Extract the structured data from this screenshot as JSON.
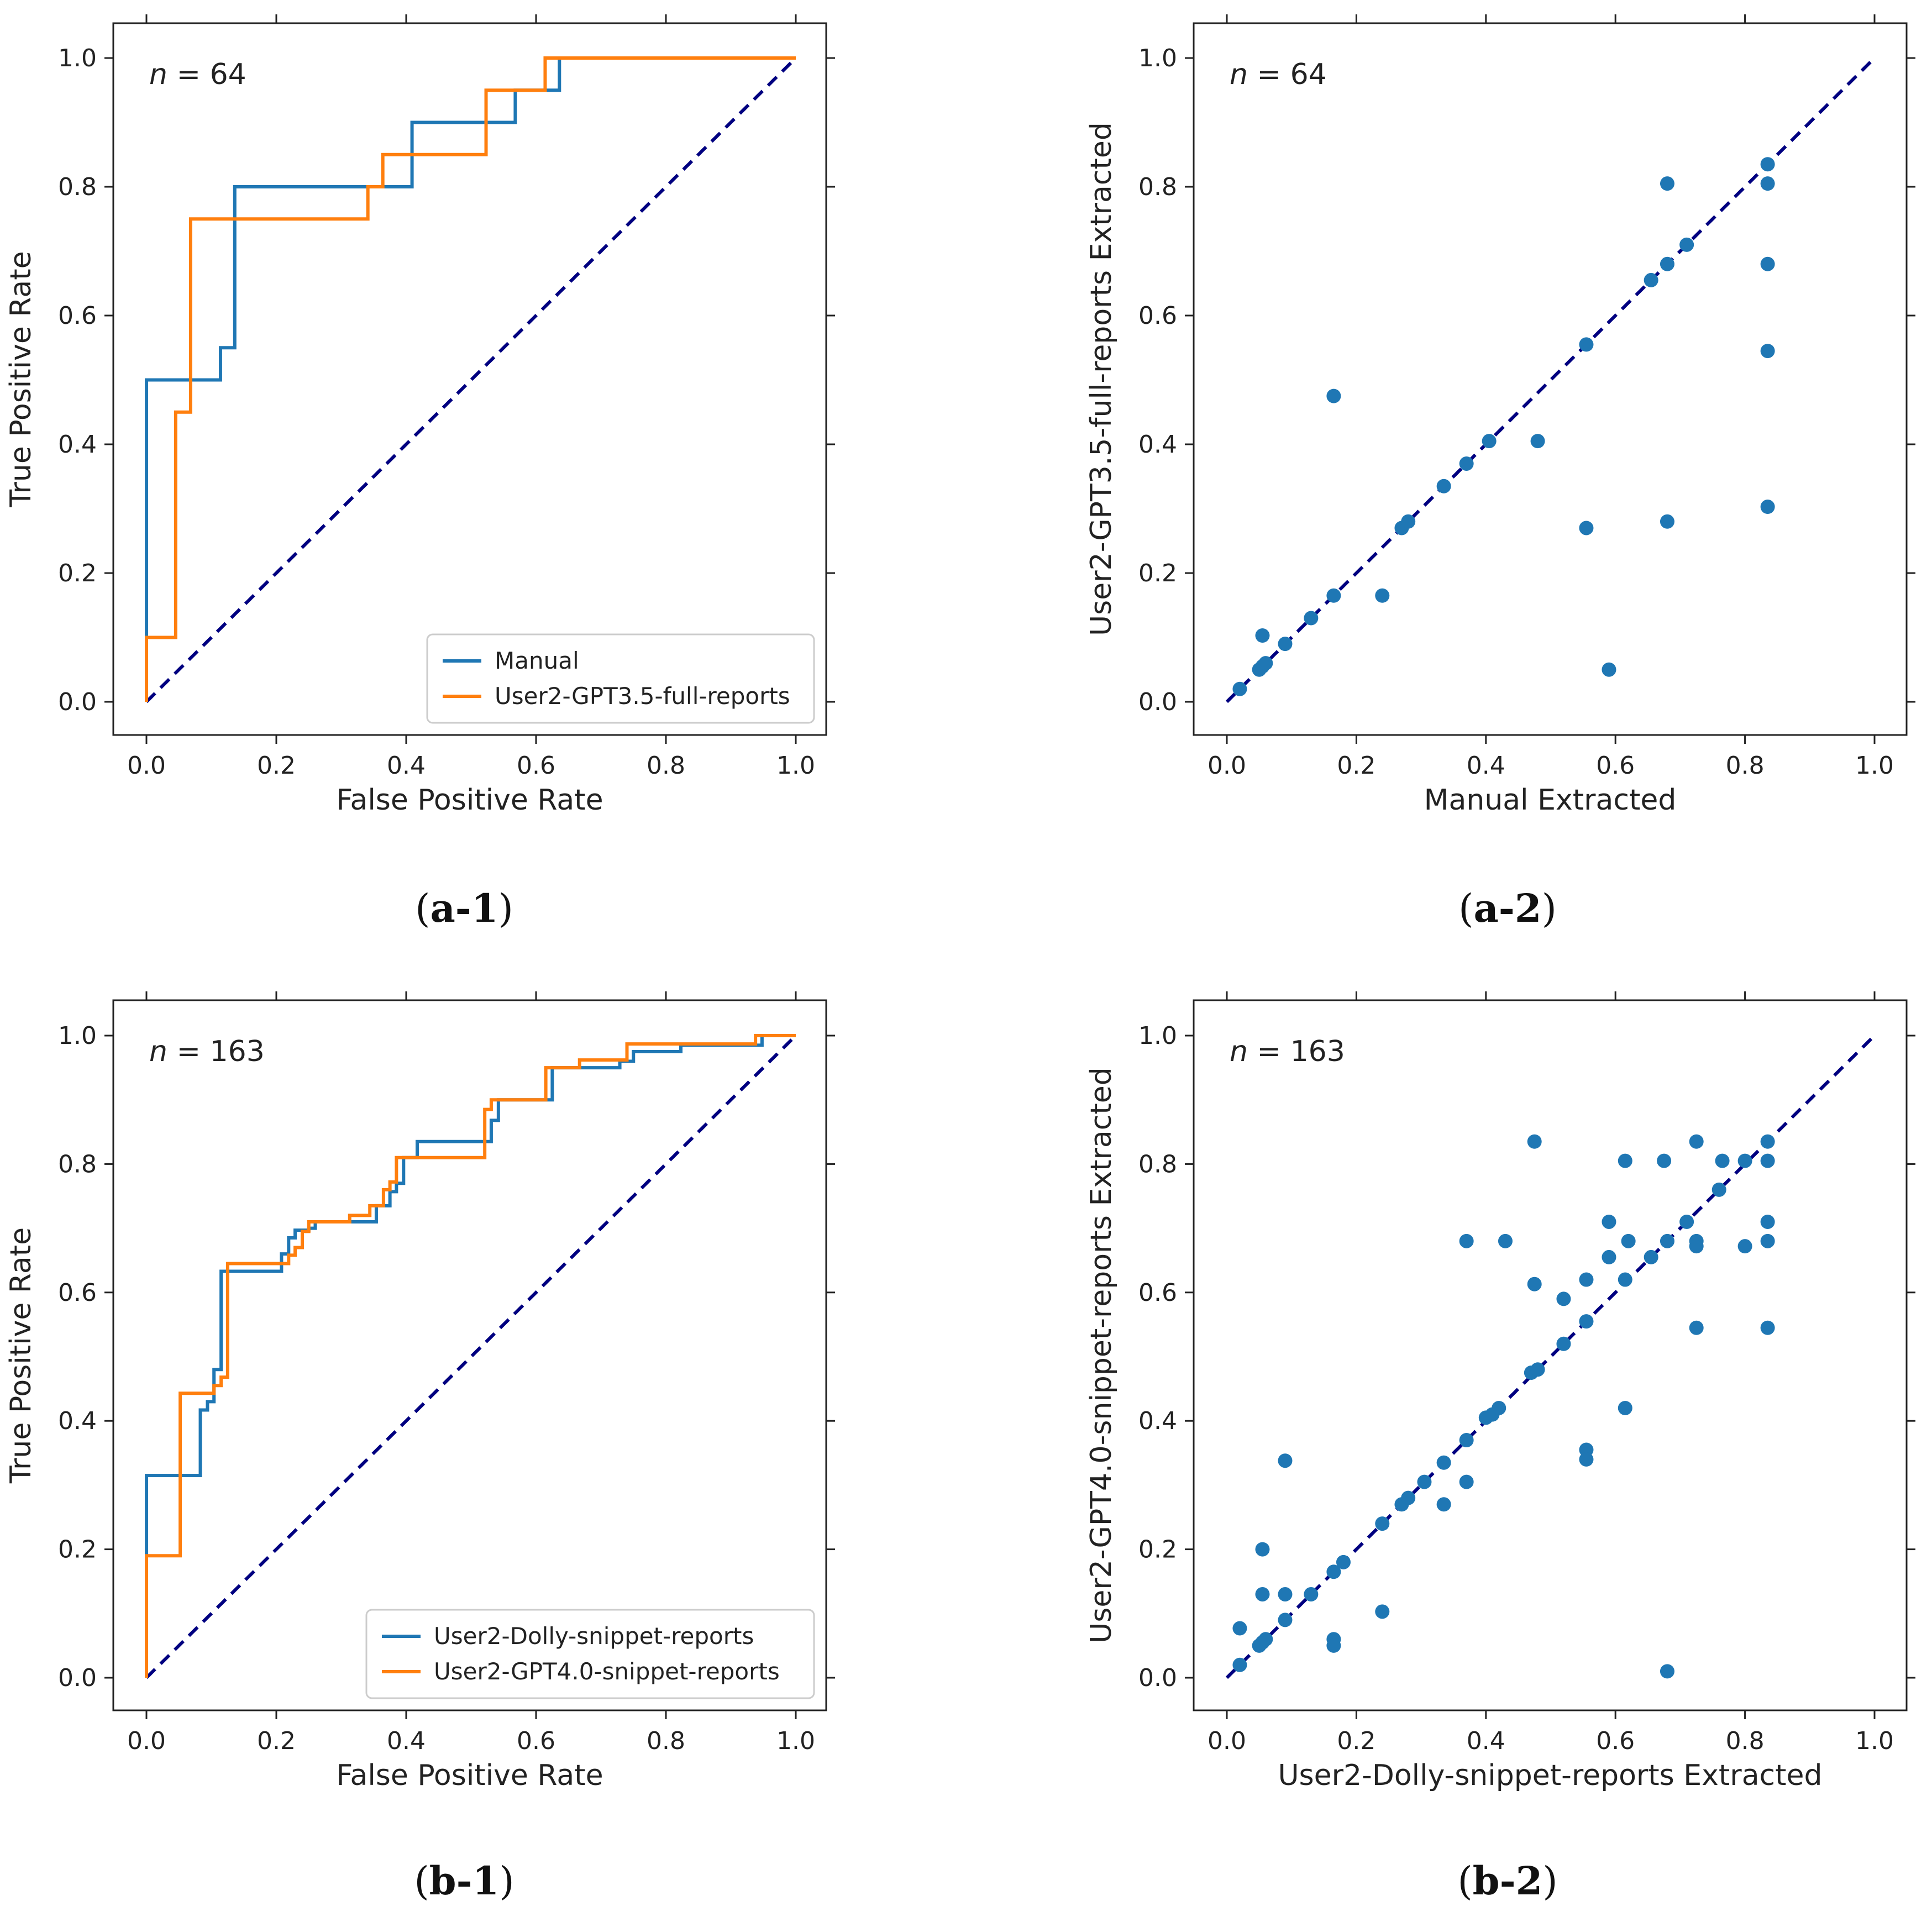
{
  "chart_data": [
    {
      "id": "a1",
      "type": "line",
      "panel_label": {
        "open": "(",
        "bold": "a-1",
        "close": ")"
      },
      "annotation": {
        "italic": "n",
        "rest": " = 64"
      },
      "xlabel": "False Positive Rate",
      "ylabel": "True Positive Rate",
      "xlim": [
        0,
        1
      ],
      "ylim": [
        0,
        1
      ],
      "xticks": [
        "0.0",
        "0.2",
        "0.4",
        "0.6",
        "0.8",
        "1.0"
      ],
      "yticks": [
        "0.0",
        "0.2",
        "0.4",
        "0.6",
        "0.8",
        "1.0"
      ],
      "legend_position": "lower-right",
      "series": [
        {
          "name": "Manual",
          "color": "#1f77b4",
          "x": [
            0,
            0,
            0.114,
            0.114,
            0.136,
            0.136,
            0.341,
            0.409,
            0.409,
            0.568,
            0.568,
            0.636,
            0.636,
            1.0
          ],
          "y": [
            0,
            0.5,
            0.5,
            0.55,
            0.55,
            0.8,
            0.8,
            0.8,
            0.9,
            0.9,
            0.95,
            0.95,
            1.0,
            1.0
          ]
        },
        {
          "name": "User2-GPT3.5-full-reports",
          "color": "#ff7f0e",
          "x": [
            0,
            0,
            0.045,
            0.045,
            0.068,
            0.068,
            0.341,
            0.341,
            0.364,
            0.364,
            0.523,
            0.523,
            0.614,
            0.614,
            1.0
          ],
          "y": [
            0,
            0.1,
            0.1,
            0.45,
            0.45,
            0.75,
            0.75,
            0.8,
            0.8,
            0.85,
            0.85,
            0.95,
            0.95,
            1.0,
            1.0
          ]
        }
      ],
      "reference_line": {
        "color": "#000080",
        "x": [
          0,
          1
        ],
        "y": [
          0,
          1
        ]
      }
    },
    {
      "id": "a2",
      "type": "scatter",
      "panel_label": {
        "open": "(",
        "bold": "a-2",
        "close": ")"
      },
      "annotation": {
        "italic": "n",
        "rest": " = 64"
      },
      "xlabel": "Manual Extracted",
      "ylabel": "User2-GPT3.5-full-reports Extracted",
      "xlim": [
        0,
        1
      ],
      "ylim": [
        0,
        1
      ],
      "xticks": [
        "0.0",
        "0.2",
        "0.4",
        "0.6",
        "0.8",
        "1.0"
      ],
      "yticks": [
        "0.0",
        "0.2",
        "0.4",
        "0.6",
        "0.8",
        "1.0"
      ],
      "marker_color": "#1f77b4",
      "points": [
        [
          0.02,
          0.02
        ],
        [
          0.05,
          0.05
        ],
        [
          0.055,
          0.055
        ],
        [
          0.06,
          0.06
        ],
        [
          0.055,
          0.103
        ],
        [
          0.09,
          0.09
        ],
        [
          0.13,
          0.13
        ],
        [
          0.165,
          0.165
        ],
        [
          0.165,
          0.475
        ],
        [
          0.24,
          0.165
        ],
        [
          0.27,
          0.27
        ],
        [
          0.28,
          0.28
        ],
        [
          0.335,
          0.335
        ],
        [
          0.37,
          0.37
        ],
        [
          0.405,
          0.405
        ],
        [
          0.48,
          0.405
        ],
        [
          0.555,
          0.555
        ],
        [
          0.555,
          0.27
        ],
        [
          0.59,
          0.05
        ],
        [
          0.655,
          0.655
        ],
        [
          0.68,
          0.68
        ],
        [
          0.68,
          0.805
        ],
        [
          0.68,
          0.28
        ],
        [
          0.71,
          0.71
        ],
        [
          0.835,
          0.835
        ],
        [
          0.835,
          0.805
        ],
        [
          0.835,
          0.68
        ],
        [
          0.835,
          0.545
        ],
        [
          0.835,
          0.303
        ]
      ],
      "reference_line": {
        "color": "#000080",
        "x": [
          0,
          1
        ],
        "y": [
          0,
          1
        ]
      }
    },
    {
      "id": "b1",
      "type": "line",
      "panel_label": {
        "open": "(",
        "bold": "b-1",
        "close": ")"
      },
      "annotation": {
        "italic": "n",
        "rest": " = 163"
      },
      "xlabel": "False Positive Rate",
      "ylabel": "True Positive Rate",
      "xlim": [
        0,
        1
      ],
      "ylim": [
        0,
        1
      ],
      "xticks": [
        "0.0",
        "0.2",
        "0.4",
        "0.6",
        "0.8",
        "1.0"
      ],
      "yticks": [
        "0.0",
        "0.2",
        "0.4",
        "0.6",
        "0.8",
        "1.0"
      ],
      "legend_position": "lower-right",
      "series": [
        {
          "name": "User2-Dolly-snippet-reports",
          "color": "#1f77b4",
          "x": [
            0,
            0,
            0.083,
            0.083,
            0.094,
            0.094,
            0.104,
            0.104,
            0.115,
            0.115,
            0.208,
            0.208,
            0.219,
            0.219,
            0.229,
            0.229,
            0.25,
            0.25,
            0.26,
            0.26,
            0.354,
            0.354,
            0.375,
            0.375,
            0.385,
            0.385,
            0.396,
            0.396,
            0.417,
            0.417,
            0.531,
            0.531,
            0.542,
            0.542,
            0.625,
            0.625,
            0.729,
            0.729,
            0.75,
            0.75,
            0.823,
            0.823,
            0.948,
            0.948,
            1.0
          ],
          "y": [
            0,
            0.315,
            0.315,
            0.417,
            0.417,
            0.43,
            0.43,
            0.48,
            0.48,
            0.633,
            0.633,
            0.66,
            0.66,
            0.685,
            0.685,
            0.697,
            0.697,
            0.7,
            0.7,
            0.71,
            0.71,
            0.735,
            0.735,
            0.757,
            0.757,
            0.77,
            0.77,
            0.81,
            0.81,
            0.835,
            0.835,
            0.868,
            0.868,
            0.9,
            0.9,
            0.95,
            0.95,
            0.96,
            0.96,
            0.975,
            0.975,
            0.985,
            0.985,
            1.0,
            1.0
          ]
        },
        {
          "name": "User2-GPT4.0-snippet-reports",
          "color": "#ff7f0e",
          "x": [
            0,
            0,
            0.052,
            0.052,
            0.104,
            0.104,
            0.115,
            0.115,
            0.125,
            0.125,
            0.219,
            0.219,
            0.229,
            0.229,
            0.24,
            0.24,
            0.25,
            0.25,
            0.313,
            0.313,
            0.344,
            0.344,
            0.365,
            0.365,
            0.375,
            0.375,
            0.385,
            0.385,
            0.521,
            0.521,
            0.531,
            0.531,
            0.615,
            0.615,
            0.667,
            0.667,
            0.74,
            0.74,
            0.938,
            0.938,
            1.0
          ],
          "y": [
            0,
            0.19,
            0.19,
            0.443,
            0.443,
            0.455,
            0.455,
            0.468,
            0.468,
            0.645,
            0.645,
            0.658,
            0.658,
            0.67,
            0.67,
            0.695,
            0.695,
            0.71,
            0.71,
            0.72,
            0.72,
            0.735,
            0.735,
            0.76,
            0.76,
            0.772,
            0.772,
            0.81,
            0.81,
            0.885,
            0.885,
            0.9,
            0.9,
            0.95,
            0.95,
            0.962,
            0.962,
            0.987,
            0.987,
            1.0,
            1.0
          ]
        }
      ],
      "reference_line": {
        "color": "#000080",
        "x": [
          0,
          1
        ],
        "y": [
          0,
          1
        ]
      }
    },
    {
      "id": "b2",
      "type": "scatter",
      "panel_label": {
        "open": "(",
        "bold": "b-2",
        "close": ")"
      },
      "annotation": {
        "italic": "n",
        "rest": " = 163"
      },
      "xlabel": "User2-Dolly-snippet-reports Extracted",
      "ylabel": "User2-GPT4.0-snippet-reports Extracted",
      "xlim": [
        0,
        1
      ],
      "ylim": [
        0,
        1
      ],
      "xticks": [
        "0.0",
        "0.2",
        "0.4",
        "0.6",
        "0.8",
        "1.0"
      ],
      "yticks": [
        "0.0",
        "0.2",
        "0.4",
        "0.6",
        "0.8",
        "1.0"
      ],
      "marker_color": "#1f77b4",
      "points": [
        [
          0.02,
          0.02
        ],
        [
          0.02,
          0.077
        ],
        [
          0.05,
          0.05
        ],
        [
          0.055,
          0.055
        ],
        [
          0.06,
          0.06
        ],
        [
          0.055,
          0.2
        ],
        [
          0.055,
          0.13
        ],
        [
          0.09,
          0.09
        ],
        [
          0.09,
          0.13
        ],
        [
          0.09,
          0.338
        ],
        [
          0.13,
          0.13
        ],
        [
          0.165,
          0.165
        ],
        [
          0.165,
          0.06
        ],
        [
          0.165,
          0.05
        ],
        [
          0.18,
          0.18
        ],
        [
          0.24,
          0.24
        ],
        [
          0.24,
          0.103
        ],
        [
          0.27,
          0.27
        ],
        [
          0.28,
          0.28
        ],
        [
          0.305,
          0.305
        ],
        [
          0.335,
          0.335
        ],
        [
          0.335,
          0.27
        ],
        [
          0.37,
          0.37
        ],
        [
          0.37,
          0.305
        ],
        [
          0.37,
          0.68
        ],
        [
          0.4,
          0.405
        ],
        [
          0.41,
          0.41
        ],
        [
          0.42,
          0.42
        ],
        [
          0.43,
          0.68
        ],
        [
          0.47,
          0.475
        ],
        [
          0.48,
          0.48
        ],
        [
          0.475,
          0.835
        ],
        [
          0.475,
          0.613
        ],
        [
          0.52,
          0.52
        ],
        [
          0.52,
          0.59
        ],
        [
          0.555,
          0.555
        ],
        [
          0.555,
          0.62
        ],
        [
          0.555,
          0.355
        ],
        [
          0.555,
          0.34
        ],
        [
          0.59,
          0.71
        ],
        [
          0.59,
          0.655
        ],
        [
          0.615,
          0.62
        ],
        [
          0.615,
          0.805
        ],
        [
          0.615,
          0.42
        ],
        [
          0.62,
          0.68
        ],
        [
          0.655,
          0.655
        ],
        [
          0.675,
          0.805
        ],
        [
          0.68,
          0.68
        ],
        [
          0.68,
          0.01
        ],
        [
          0.71,
          0.71
        ],
        [
          0.725,
          0.835
        ],
        [
          0.725,
          0.68
        ],
        [
          0.725,
          0.672
        ],
        [
          0.725,
          0.545
        ],
        [
          0.76,
          0.76
        ],
        [
          0.765,
          0.805
        ],
        [
          0.8,
          0.672
        ],
        [
          0.8,
          0.805
        ],
        [
          0.835,
          0.835
        ],
        [
          0.835,
          0.805
        ],
        [
          0.835,
          0.71
        ],
        [
          0.835,
          0.68
        ],
        [
          0.835,
          0.545
        ]
      ],
      "reference_line": {
        "color": "#000080",
        "x": [
          0,
          1
        ],
        "y": [
          0,
          1
        ]
      }
    }
  ]
}
